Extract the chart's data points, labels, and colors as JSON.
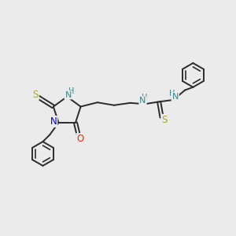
{
  "bg_color": "#ebebeb",
  "bond_color": "#2a2a2a",
  "bond_width": 1.4,
  "atom_colors": {
    "N": "#0000cc",
    "O": "#ff2200",
    "S": "#aaaa00",
    "NH": "#338888"
  },
  "figsize": [
    3.0,
    3.0
  ],
  "dpi": 100,
  "xlim": [
    0,
    10
  ],
  "ylim": [
    0,
    10
  ]
}
